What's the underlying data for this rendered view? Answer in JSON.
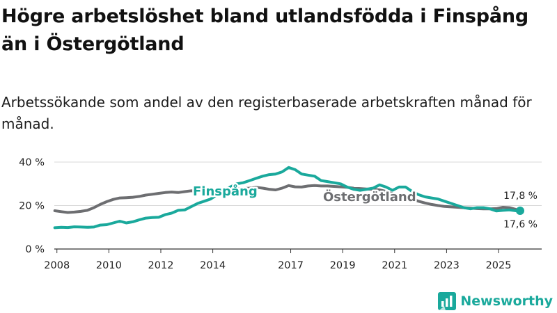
{
  "title": "Högre arbetslöshet bland utlandsfödda i Finspång än i Östergötland",
  "subtitle": "Arbetssökande som andel av den registerbaserade arbetskraften månad för månad.",
  "brand": {
    "name": "Newsworthy",
    "color": "#1aa99c"
  },
  "colors": {
    "finspang": "#1aa99c",
    "ostergotland": "#6d6e71",
    "grid": "#d9d9d9",
    "axis": "#333333"
  },
  "chart_data": {
    "type": "line",
    "title": "Högre arbetslöshet bland utlandsfödda i Finspång än i Östergötland",
    "xlabel": "",
    "ylabel": "",
    "xlim": [
      2007.9,
      2025.83
    ],
    "ylim": [
      0,
      40
    ],
    "y_ticks": [
      0,
      20,
      40
    ],
    "y_tick_labels": [
      "0 %",
      "20 %",
      "40 %"
    ],
    "x_ticks": [
      2008,
      2010,
      2012,
      2014,
      2017,
      2019,
      2021,
      2023,
      2025
    ],
    "x_tick_labels": [
      "2008",
      "2010",
      "2012",
      "2014",
      "2017",
      "2019",
      "2021",
      "2023",
      "2025"
    ],
    "series": [
      {
        "name": "Finspång",
        "color": "#1aa99c",
        "end_label": "17,6 %",
        "x": [
          2007.92,
          2008.17,
          2008.42,
          2008.67,
          2008.92,
          2009.17,
          2009.42,
          2009.67,
          2009.92,
          2010.17,
          2010.42,
          2010.67,
          2010.92,
          2011.17,
          2011.42,
          2011.67,
          2011.92,
          2012.17,
          2012.42,
          2012.67,
          2012.92,
          2013.17,
          2013.42,
          2013.67,
          2013.92,
          2014.17,
          2014.42,
          2014.67,
          2014.92,
          2015.17,
          2015.42,
          2015.67,
          2015.92,
          2016.17,
          2016.42,
          2016.67,
          2016.92,
          2017.17,
          2017.42,
          2017.67,
          2017.92,
          2018.17,
          2018.42,
          2018.67,
          2018.92,
          2019.17,
          2019.42,
          2019.67,
          2019.92,
          2020.17,
          2020.42,
          2020.67,
          2020.92,
          2021.17,
          2021.42,
          2021.67,
          2021.92,
          2022.17,
          2022.42,
          2022.67,
          2022.92,
          2023.17,
          2023.42,
          2023.67,
          2023.92,
          2024.17,
          2024.42,
          2024.67,
          2024.92,
          2025.17,
          2025.42,
          2025.67,
          2025.83
        ],
        "y": [
          9.8,
          10.0,
          9.9,
          10.2,
          10.1,
          10.0,
          10.1,
          11.0,
          11.2,
          12.0,
          12.8,
          12.0,
          12.5,
          13.4,
          14.2,
          14.5,
          14.6,
          15.8,
          16.5,
          17.8,
          18.0,
          19.5,
          21.0,
          22.0,
          23.0,
          25.0,
          27.0,
          28.5,
          30.0,
          30.5,
          31.5,
          32.5,
          33.5,
          34.2,
          34.5,
          35.5,
          37.5,
          36.5,
          34.5,
          34.0,
          33.5,
          31.5,
          31.0,
          30.5,
          30.0,
          28.5,
          27.5,
          27.0,
          27.5,
          28.0,
          29.5,
          28.5,
          27.0,
          28.5,
          28.5,
          26.5,
          25.0,
          24.0,
          23.5,
          23.0,
          22.0,
          21.0,
          20.0,
          19.0,
          18.5,
          19.0,
          19.0,
          18.5,
          17.5,
          17.8,
          18.0,
          17.6,
          17.6
        ]
      },
      {
        "name": "Östergötland",
        "color": "#6d6e71",
        "end_label": "17,8 %",
        "x": [
          2007.92,
          2008.17,
          2008.42,
          2008.67,
          2008.92,
          2009.17,
          2009.42,
          2009.67,
          2009.92,
          2010.17,
          2010.42,
          2010.67,
          2010.92,
          2011.17,
          2011.42,
          2011.67,
          2011.92,
          2012.17,
          2012.42,
          2012.67,
          2012.92,
          2013.17,
          2013.42,
          2013.67,
          2013.92,
          2014.17,
          2014.42,
          2014.67,
          2014.92,
          2015.17,
          2015.42,
          2015.67,
          2015.92,
          2016.17,
          2016.42,
          2016.67,
          2016.92,
          2017.17,
          2017.42,
          2017.67,
          2017.92,
          2018.17,
          2018.42,
          2018.67,
          2018.92,
          2019.17,
          2019.42,
          2019.67,
          2019.92,
          2020.17,
          2020.42,
          2020.67,
          2020.92,
          2021.17,
          2021.42,
          2021.67,
          2021.92,
          2022.17,
          2022.42,
          2022.67,
          2022.92,
          2023.17,
          2023.42,
          2023.67,
          2023.92,
          2024.17,
          2024.42,
          2024.67,
          2024.92,
          2025.17,
          2025.42,
          2025.67,
          2025.83
        ],
        "y": [
          17.6,
          17.2,
          16.8,
          17.0,
          17.3,
          17.8,
          19.0,
          20.5,
          21.8,
          22.8,
          23.5,
          23.6,
          23.8,
          24.2,
          24.8,
          25.2,
          25.6,
          26.0,
          26.2,
          26.0,
          26.4,
          26.8,
          26.5,
          26.8,
          27.0,
          27.2,
          27.5,
          27.8,
          27.6,
          27.8,
          28.0,
          28.4,
          28.0,
          27.5,
          27.2,
          28.0,
          29.2,
          28.6,
          28.5,
          29.0,
          29.2,
          29.0,
          29.0,
          28.8,
          28.6,
          28.4,
          28.0,
          27.8,
          27.6,
          27.5,
          27.2,
          26.5,
          25.5,
          24.5,
          24.0,
          23.0,
          22.0,
          21.2,
          20.5,
          20.0,
          19.6,
          19.4,
          19.2,
          19.0,
          18.8,
          18.6,
          18.5,
          18.5,
          18.6,
          19.2,
          19.0,
          18.2,
          17.8
        ]
      }
    ]
  }
}
